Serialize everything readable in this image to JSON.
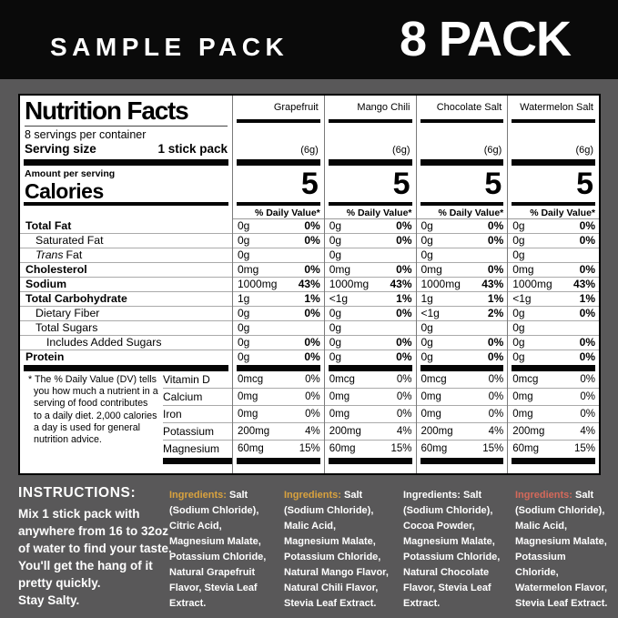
{
  "banner": {
    "left": "SAMPLE PACK",
    "right": "8 PACK"
  },
  "label": {
    "title": "Nutrition Facts",
    "servings": "8 servings per container",
    "serving_size_label": "Serving size",
    "serving_size_value": "1 stick pack",
    "amount_per_serving": "Amount per serving",
    "calories_label": "Calories",
    "dv_header": "% Daily Value*",
    "trans_prefix": "Trans",
    "trans_suffix": "Fat",
    "row_labels": [
      "Total Fat",
      "Saturated Fat",
      "Trans Fat",
      "Cholesterol",
      "Sodium",
      "Total Carbohydrate",
      "Dietary Fiber",
      "Total Sugars",
      "Includes Added Sugars",
      "Protein"
    ],
    "vitamin_labels": [
      "Vitamin D",
      "Calcium",
      "Iron",
      "Potassium",
      "Magnesium"
    ],
    "footnote_star": "*",
    "footnote": "The % Daily Value (DV) tells you how much a nutrient in a serving of food contributes to a daily diet. 2,000 calories a day is used for general nutrition advice.",
    "columns": [
      {
        "name": "Grapefruit",
        "weight": "(6g)",
        "calories": "5",
        "rows": [
          [
            "0g",
            "0%"
          ],
          [
            "0g",
            "0%"
          ],
          [
            "0g",
            ""
          ],
          [
            "0mg",
            "0%"
          ],
          [
            "1000mg",
            "43%"
          ],
          [
            "1g",
            "1%"
          ],
          [
            "0g",
            "0%"
          ],
          [
            "0g",
            ""
          ],
          [
            "0g",
            "0%"
          ],
          [
            "0g",
            "0%"
          ]
        ],
        "vitamins": [
          [
            "0mcg",
            "0%"
          ],
          [
            "0mg",
            "0%"
          ],
          [
            "0mg",
            "0%"
          ],
          [
            "200mg",
            "4%"
          ],
          [
            "60mg",
            "15%"
          ]
        ]
      },
      {
        "name": "Mango Chili",
        "weight": "(6g)",
        "calories": "5",
        "rows": [
          [
            "0g",
            "0%"
          ],
          [
            "0g",
            "0%"
          ],
          [
            "0g",
            ""
          ],
          [
            "0mg",
            "0%"
          ],
          [
            "1000mg",
            "43%"
          ],
          [
            "<1g",
            "1%"
          ],
          [
            "0g",
            "0%"
          ],
          [
            "0g",
            ""
          ],
          [
            "0g",
            "0%"
          ],
          [
            "0g",
            "0%"
          ]
        ],
        "vitamins": [
          [
            "0mcg",
            "0%"
          ],
          [
            "0mg",
            "0%"
          ],
          [
            "0mg",
            "0%"
          ],
          [
            "200mg",
            "4%"
          ],
          [
            "60mg",
            "15%"
          ]
        ]
      },
      {
        "name": "Chocolate Salt",
        "weight": "(6g)",
        "calories": "5",
        "rows": [
          [
            "0g",
            "0%"
          ],
          [
            "0g",
            "0%"
          ],
          [
            "0g",
            ""
          ],
          [
            "0mg",
            "0%"
          ],
          [
            "1000mg",
            "43%"
          ],
          [
            "1g",
            "1%"
          ],
          [
            "<1g",
            "2%"
          ],
          [
            "0g",
            ""
          ],
          [
            "0g",
            "0%"
          ],
          [
            "0g",
            "0%"
          ]
        ],
        "vitamins": [
          [
            "0mcg",
            "0%"
          ],
          [
            "0mg",
            "0%"
          ],
          [
            "0mg",
            "0%"
          ],
          [
            "200mg",
            "4%"
          ],
          [
            "60mg",
            "15%"
          ]
        ]
      },
      {
        "name": "Watermelon Salt",
        "weight": "(6g)",
        "calories": "5",
        "rows": [
          [
            "0g",
            "0%"
          ],
          [
            "0g",
            "0%"
          ],
          [
            "0g",
            ""
          ],
          [
            "0mg",
            "0%"
          ],
          [
            "1000mg",
            "43%"
          ],
          [
            "<1g",
            "1%"
          ],
          [
            "0g",
            "0%"
          ],
          [
            "0g",
            ""
          ],
          [
            "0g",
            "0%"
          ],
          [
            "0g",
            "0%"
          ]
        ],
        "vitamins": [
          [
            "0mcg",
            "0%"
          ],
          [
            "0mg",
            "0%"
          ],
          [
            "0mg",
            "0%"
          ],
          [
            "200mg",
            "4%"
          ],
          [
            "60mg",
            "15%"
          ]
        ]
      }
    ]
  },
  "instructions": {
    "title": "INSTRUCTIONS:",
    "body": "Mix 1 stick pack with anywhere from 16 to 32oz of water to find your taste. You'll get the hang of it pretty quickly.",
    "tagline": "Stay Salty."
  },
  "ingredients": [
    {
      "label": "Ingredients:",
      "color": "#D9A23E",
      "text": "Salt (Sodium Chloride), Citric Acid, Magnesium Malate, Potassium Chloride, Natural Grapefruit Flavor, Stevia Leaf Extract."
    },
    {
      "label": "Ingredients:",
      "color": "#D9A23E",
      "text": "Salt (Sodium Chloride), Malic Acid, Magnesium Malate, Potassium Chloride, Natural Mango Flavor, Natural Chili Flavor, Stevia Leaf Extract."
    },
    {
      "label": "Ingredients:",
      "color": "#FFFFFF",
      "text": "Salt (Sodium Chloride), Cocoa Powder, Magnesium Malate, Potassium Chloride, Natural Chocolate Flavor, Stevia Leaf Extract."
    },
    {
      "label": "Ingredients:",
      "color": "#D5695A",
      "text": "Salt (Sodium Chloride), Malic Acid, Magnesium Malate, Potassium Chloride, Watermelon Flavor, Stevia Leaf Extract."
    }
  ]
}
